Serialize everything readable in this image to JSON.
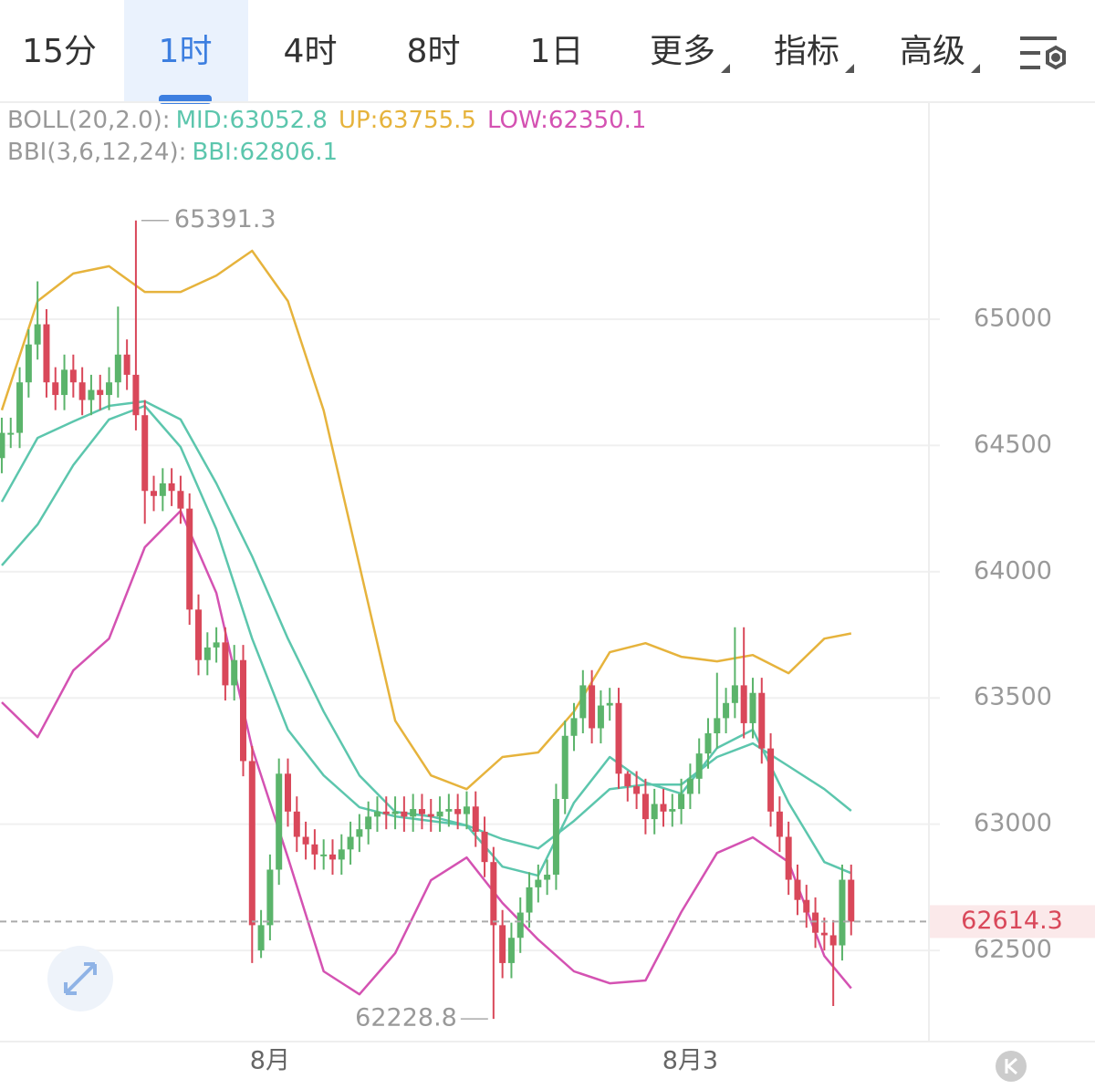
{
  "tabs": [
    "15分",
    "1时",
    "4时",
    "8时",
    "1日",
    "更多",
    "指标",
    "高级"
  ],
  "active_tab": 1,
  "chart_data": {
    "type": "candlestick",
    "indicators": [
      {
        "name": "BOLL(20,2.0):",
        "items": [
          {
            "text": "MID:63052.8",
            "color": "#5cc6ad"
          },
          {
            "text": "UP:63755.5",
            "color": "#e6b33c"
          },
          {
            "text": "LOW:62350.1",
            "color": "#d452b2"
          }
        ]
      },
      {
        "name": "BBI(3,6,12,24):",
        "items": [
          {
            "text": "BBI:62806.1",
            "color": "#5cc6ad"
          }
        ]
      }
    ],
    "categories": [
      null,
      null,
      null,
      null,
      null,
      null,
      null,
      null,
      null,
      null,
      null,
      null,
      null,
      null,
      null,
      null,
      null,
      null,
      null,
      null,
      null,
      null,
      null,
      null,
      null,
      null,
      null,
      null,
      null,
      null,
      "8月",
      null,
      null,
      null,
      null,
      null,
      null,
      null,
      null,
      null,
      null,
      null,
      null,
      null,
      null,
      null,
      null,
      null,
      null,
      null,
      null,
      null,
      null,
      null,
      null,
      null,
      null,
      null,
      null,
      null,
      null,
      null,
      null,
      null,
      null,
      null,
      null,
      null,
      null,
      null,
      null,
      null,
      null,
      null,
      null,
      null,
      null,
      "8月3",
      null,
      null,
      null,
      null,
      null,
      null,
      null,
      null,
      null,
      null,
      null,
      null,
      null,
      null,
      null,
      null,
      null,
      null
    ],
    "ohlc": {
      "up_color": "#5bb46b",
      "down_color": "#d9485a",
      "open": [
        64450,
        64550,
        64550,
        64750,
        64900,
        64980,
        64750,
        64700,
        64800,
        64750,
        64680,
        64720,
        64700,
        64750,
        64860,
        64780,
        64620,
        64320,
        64300,
        64350,
        64320,
        64250,
        63850,
        63650,
        63700,
        63720,
        63550,
        63650,
        63250,
        62500,
        62600,
        62820,
        63200,
        63050,
        62950,
        62920,
        62880,
        62880,
        62860,
        62900,
        62950,
        62980,
        63030,
        63050,
        63040,
        63050,
        63030,
        63060,
        63040,
        63030,
        63050,
        63060,
        63040,
        63070,
        62970,
        62850,
        62600,
        62450,
        62550,
        62650,
        62750,
        62780,
        62800,
        63100,
        63350,
        63420,
        63550,
        63380,
        63470,
        63480,
        63200,
        63150,
        63120,
        63020,
        63080,
        63050,
        63060,
        63120,
        63180,
        63280,
        63360,
        63420,
        63480,
        63550,
        63400,
        63520,
        63300,
        63050,
        62950,
        62780,
        62700,
        62650,
        62570,
        62560,
        62520,
        62780
      ],
      "high": [
        64610,
        64610,
        64810,
        64960,
        65150,
        65040,
        64810,
        64860,
        64860,
        64810,
        64780,
        64780,
        64810,
        65050,
        64920,
        65391.3,
        64680,
        64380,
        64410,
        64410,
        64380,
        64310,
        63910,
        63760,
        63780,
        63780,
        63710,
        63710,
        63310,
        62660,
        62880,
        63260,
        63260,
        63110,
        63010,
        62980,
        62940,
        62940,
        62960,
        63010,
        63040,
        63090,
        63110,
        63110,
        63110,
        63110,
        63120,
        63120,
        63100,
        63110,
        63120,
        63120,
        63130,
        63130,
        63030,
        62910,
        62660,
        62610,
        62710,
        62810,
        62840,
        62860,
        63160,
        63410,
        63480,
        63610,
        63610,
        63530,
        63540,
        63540,
        63210,
        63210,
        63180,
        63140,
        63140,
        63120,
        63180,
        63240,
        63340,
        63420,
        63600,
        63540,
        63780,
        63780,
        63580,
        63580,
        63360,
        63110,
        63010,
        62840,
        62760,
        62710,
        62630,
        62620,
        62840,
        62840
      ],
      "low": [
        64390,
        64490,
        64490,
        64690,
        64840,
        64690,
        64640,
        64640,
        64690,
        64620,
        64620,
        64640,
        64640,
        64690,
        64720,
        64560,
        64190,
        64240,
        64240,
        64260,
        64190,
        63790,
        63590,
        63590,
        63640,
        63490,
        63490,
        63190,
        62450,
        62470,
        62540,
        62760,
        62990,
        62890,
        62860,
        62820,
        62820,
        62800,
        62800,
        62840,
        62890,
        62920,
        62970,
        62980,
        62980,
        62970,
        62970,
        62980,
        62970,
        62970,
        62990,
        62980,
        62980,
        62910,
        62790,
        62228.8,
        62390,
        62390,
        62490,
        62590,
        62690,
        62720,
        62740,
        63040,
        63290,
        63360,
        63320,
        63320,
        63410,
        63140,
        63090,
        63060,
        62960,
        62960,
        62990,
        62990,
        63000,
        63060,
        63120,
        63220,
        63300,
        63360,
        63420,
        63340,
        63340,
        63240,
        62990,
        62890,
        62720,
        62640,
        62590,
        62510,
        62500,
        62280,
        62460,
        62560
      ],
      "close": [
        64550,
        64550,
        64750,
        64900,
        64980,
        64750,
        64700,
        64800,
        64750,
        64680,
        64720,
        64700,
        64750,
        64860,
        64780,
        64620,
        64320,
        64300,
        64350,
        64320,
        64250,
        63850,
        63650,
        63700,
        63720,
        63550,
        63650,
        63250,
        62600,
        62600,
        62820,
        63200,
        63050,
        62950,
        62920,
        62880,
        62880,
        62860,
        62900,
        62950,
        62980,
        63030,
        63050,
        63040,
        63050,
        63030,
        63060,
        63040,
        63030,
        63050,
        63060,
        63040,
        63070,
        62970,
        62850,
        62600,
        62450,
        62550,
        62650,
        62750,
        62780,
        62800,
        63100,
        63350,
        63420,
        63550,
        63380,
        63470,
        63480,
        63200,
        63150,
        63120,
        63020,
        63080,
        63050,
        63060,
        63120,
        63180,
        63280,
        63360,
        63420,
        63480,
        63550,
        63400,
        63520,
        63300,
        63050,
        62950,
        62780,
        62700,
        62650,
        62570,
        62560,
        62520,
        62780,
        62614.3
      ]
    },
    "lines": {
      "x": [
        0,
        4,
        8,
        12,
        16,
        20,
        24,
        28,
        32,
        36,
        40,
        44,
        48,
        52,
        56,
        60,
        64,
        68,
        72,
        76,
        80,
        84,
        88,
        92,
        95
      ],
      "series": [
        {
          "color": "#e6b33c",
          "values": [
            64640,
            65072,
            65181,
            65210,
            65108,
            65108,
            65173,
            65271,
            65072,
            64639,
            64025,
            63410,
            63193,
            63139,
            63266,
            63284,
            63446,
            63681,
            63717,
            63663,
            63645,
            63670,
            63598,
            63735,
            63755.5
          ]
        },
        {
          "color": "#5cc6ad",
          "values": [
            64277,
            64530,
            64595,
            64657,
            64675,
            64603,
            64350,
            64061,
            63735,
            63446,
            63193,
            63049,
            63031,
            62995,
            62941,
            62904,
            63013,
            63139,
            63157,
            63157,
            63266,
            63320,
            63230,
            63139,
            63052.8
          ]
        },
        {
          "color": "#5cc6ad",
          "values": [
            64025,
            64187,
            64422,
            64603,
            64657,
            64494,
            64169,
            63735,
            63374,
            63193,
            63067,
            63031,
            63013,
            62995,
            62832,
            62796,
            63085,
            63266,
            63165,
            63121,
            63302,
            63374,
            63085,
            62850,
            62806.1
          ]
        },
        {
          "color": "#d452b2",
          "values": [
            63483,
            63345,
            63609,
            63735,
            64097,
            64241,
            63916,
            63302,
            62868,
            62417,
            62326,
            62489,
            62778,
            62868,
            62688,
            62543,
            62417,
            62370,
            62381,
            62652,
            62886,
            62948,
            62850,
            62478,
            62350.1
          ]
        }
      ]
    },
    "xlim": [
      -0.2,
      103.7
    ],
    "ylim": [
      62139,
      65560
    ],
    "yticks": [
      62500,
      63000,
      63500,
      64000,
      64500,
      65000
    ],
    "grid": true
  }
}
